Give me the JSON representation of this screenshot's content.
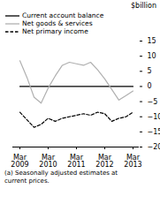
{
  "chart_data": {
    "type": "line",
    "title": "$billion",
    "caption": "(a) Seasonally adjusted estimates at\ncurrent prices.",
    "categories": [
      "Mar\n2009",
      null,
      null,
      null,
      "Mar\n2010",
      null,
      null,
      null,
      "Mar\n2011",
      null,
      null,
      null,
      "Mar\n2012",
      null,
      null,
      null,
      "Mar\n2013"
    ],
    "series": [
      {
        "name": "Current account balance",
        "color": "#000000",
        "line_style": "solid",
        "values": [
          0,
          0,
          0,
          0,
          0,
          0,
          0,
          0,
          0,
          0,
          0,
          0,
          0,
          0,
          0,
          0,
          0
        ]
      },
      {
        "name": "Net goods & services",
        "color": "#b0b0b0",
        "line_style": "solid",
        "values": [
          8.5,
          3.0,
          -3.5,
          -5.5,
          -0.5,
          3.5,
          7.0,
          8.0,
          7.5,
          7.0,
          8.0,
          5.5,
          2.5,
          -1.0,
          -4.5,
          -3.0,
          -1.5
        ]
      },
      {
        "name": "Net primary income",
        "color": "#000000",
        "line_style": "dashed",
        "values": [
          -8.5,
          -11.0,
          -13.5,
          -12.5,
          -10.5,
          -11.5,
          -10.5,
          -10.0,
          -9.5,
          -9.0,
          -9.5,
          -8.5,
          -9.0,
          -11.5,
          -10.5,
          -10.0,
          -8.5
        ]
      }
    ],
    "ylim": [
      -20,
      15
    ],
    "yticks": [
      -20,
      -15,
      -10,
      -5,
      0,
      5,
      10,
      15
    ],
    "legend": "upper left",
    "grid": false
  }
}
